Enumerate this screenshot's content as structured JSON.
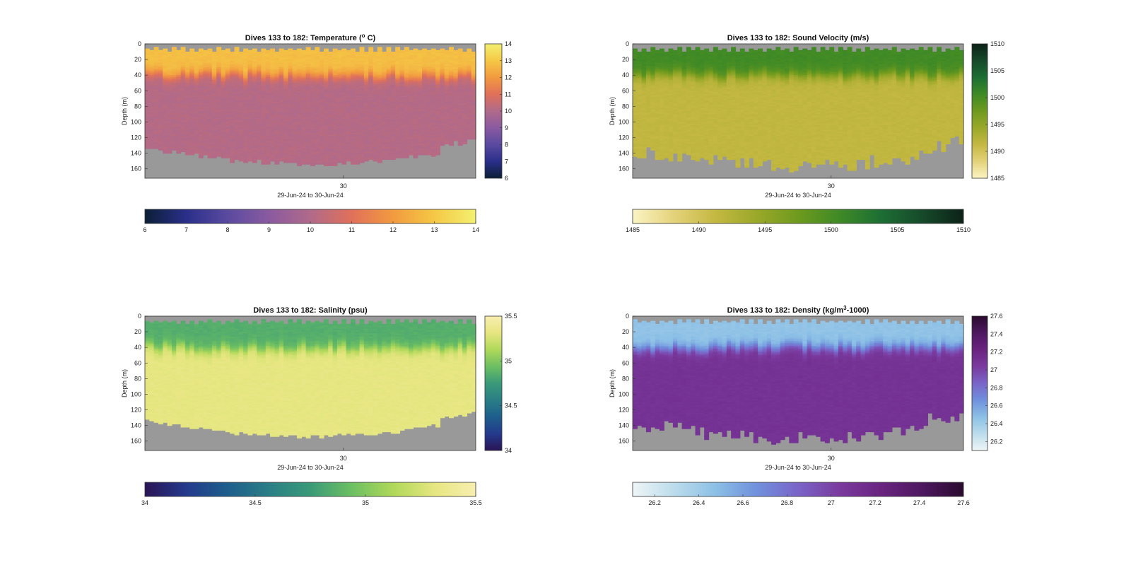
{
  "figure": {
    "background": "#ffffff",
    "missing_color": "#999999"
  },
  "chart_data": [
    {
      "type": "heatmap",
      "title_prefix": "Dives 133 to 182: Temperature (",
      "title_sup": "o",
      "title_suffix": " C)",
      "ylabel": "Depth (m)",
      "xlabel": "29-Jun-24 to 30-Jun-24",
      "x_tick_label": "30",
      "y_ticks": [
        "0",
        "20",
        "40",
        "60",
        "80",
        "100",
        "120",
        "140",
        "160"
      ],
      "depth_range": [
        0,
        172
      ],
      "columns": 74,
      "colormap": [
        "#0b1f36",
        "#2a2f8a",
        "#5a4aa0",
        "#8a5aa0",
        "#b06a8a",
        "#e0705a",
        "#f29a40",
        "#f5c845",
        "#f3f070"
      ],
      "clim": [
        6,
        14
      ],
      "surface_value": 12.8,
      "deep_value": 10.1,
      "mixed_layer_depth_m": 40,
      "colorbar_ticks": [
        "6",
        "7",
        "8",
        "9",
        "10",
        "11",
        "12",
        "13",
        "14"
      ],
      "h_colorbar_ticks": [
        "6",
        "7",
        "8",
        "9",
        "10",
        "11",
        "12",
        "13",
        "14"
      ]
    },
    {
      "type": "heatmap",
      "title_prefix": "Dives 133 to 182: Sound Velocity (m/s)",
      "title_sup": "",
      "title_suffix": "",
      "ylabel": "Depth (m)",
      "xlabel": "29-Jun-24 to 30-Jun-24",
      "x_tick_label": "30",
      "y_ticks": [
        "0",
        "20",
        "40",
        "60",
        "80",
        "100",
        "120",
        "140",
        "160"
      ],
      "depth_range": [
        0,
        172
      ],
      "columns": 74,
      "colormap": [
        "#fbf4c4",
        "#e4d27a",
        "#c4b842",
        "#9aa82a",
        "#6e9a1e",
        "#3f8a26",
        "#1d6e34",
        "#164a2a",
        "#0c2218"
      ],
      "clim": [
        1485,
        1510
      ],
      "surface_value": 1500.5,
      "deep_value": 1491.5,
      "mixed_layer_depth_m": 40,
      "colorbar_ticks": [
        "1485",
        "1490",
        "1495",
        "1500",
        "1505",
        "1510"
      ],
      "h_colorbar_ticks": [
        "1485",
        "1490",
        "1495",
        "1500",
        "1505",
        "1510"
      ]
    },
    {
      "type": "heatmap",
      "title_prefix": "Dives 133 to 182: Salinity (psu)",
      "title_sup": "",
      "title_suffix": "",
      "ylabel": "Depth (m)",
      "xlabel": "29-Jun-24 to 30-Jun-24",
      "x_tick_label": "30",
      "y_ticks": [
        "0",
        "20",
        "40",
        "60",
        "80",
        "100",
        "120",
        "140",
        "160"
      ],
      "depth_range": [
        0,
        172
      ],
      "columns": 74,
      "colormap": [
        "#2a1456",
        "#243a8c",
        "#1e5e8c",
        "#2a7e86",
        "#3a9a78",
        "#6cbf62",
        "#b0d85a",
        "#e6e680",
        "#f8eeb0"
      ],
      "clim": [
        34,
        35.5
      ],
      "surface_value": 34.85,
      "deep_value": 35.32,
      "mixed_layer_depth_m": 40,
      "colorbar_ticks": [
        "34",
        "34.5",
        "35",
        "35.5"
      ],
      "h_colorbar_ticks": [
        "34",
        "34.5",
        "35",
        "35.5"
      ]
    },
    {
      "type": "heatmap",
      "title_prefix": "Dives 133 to 182: Density (kg/m",
      "title_sup": "3",
      "title_suffix": "-1000)",
      "ylabel": "Depth (m)",
      "xlabel": "29-Jun-24 to 30-Jun-24",
      "x_tick_label": "30",
      "y_ticks": [
        "0",
        "20",
        "40",
        "60",
        "80",
        "100",
        "120",
        "140",
        "160"
      ],
      "depth_range": [
        0,
        172
      ],
      "columns": 74,
      "colormap": [
        "#eef5f6",
        "#bcdcec",
        "#8cc0e6",
        "#7090dc",
        "#7a64c8",
        "#7a3a9e",
        "#6a2480",
        "#4e1860",
        "#2a0a2e"
      ],
      "clim": [
        26.1,
        27.6
      ],
      "surface_value": 26.45,
      "deep_value": 27.1,
      "mixed_layer_depth_m": 40,
      "colorbar_ticks": [
        "26.2",
        "26.4",
        "26.6",
        "26.8",
        "27",
        "27.2",
        "27.4",
        "27.6"
      ],
      "h_colorbar_ticks": [
        "26.2",
        "26.4",
        "26.6",
        "26.8",
        "27",
        "27.2",
        "27.4",
        "27.6"
      ]
    }
  ]
}
